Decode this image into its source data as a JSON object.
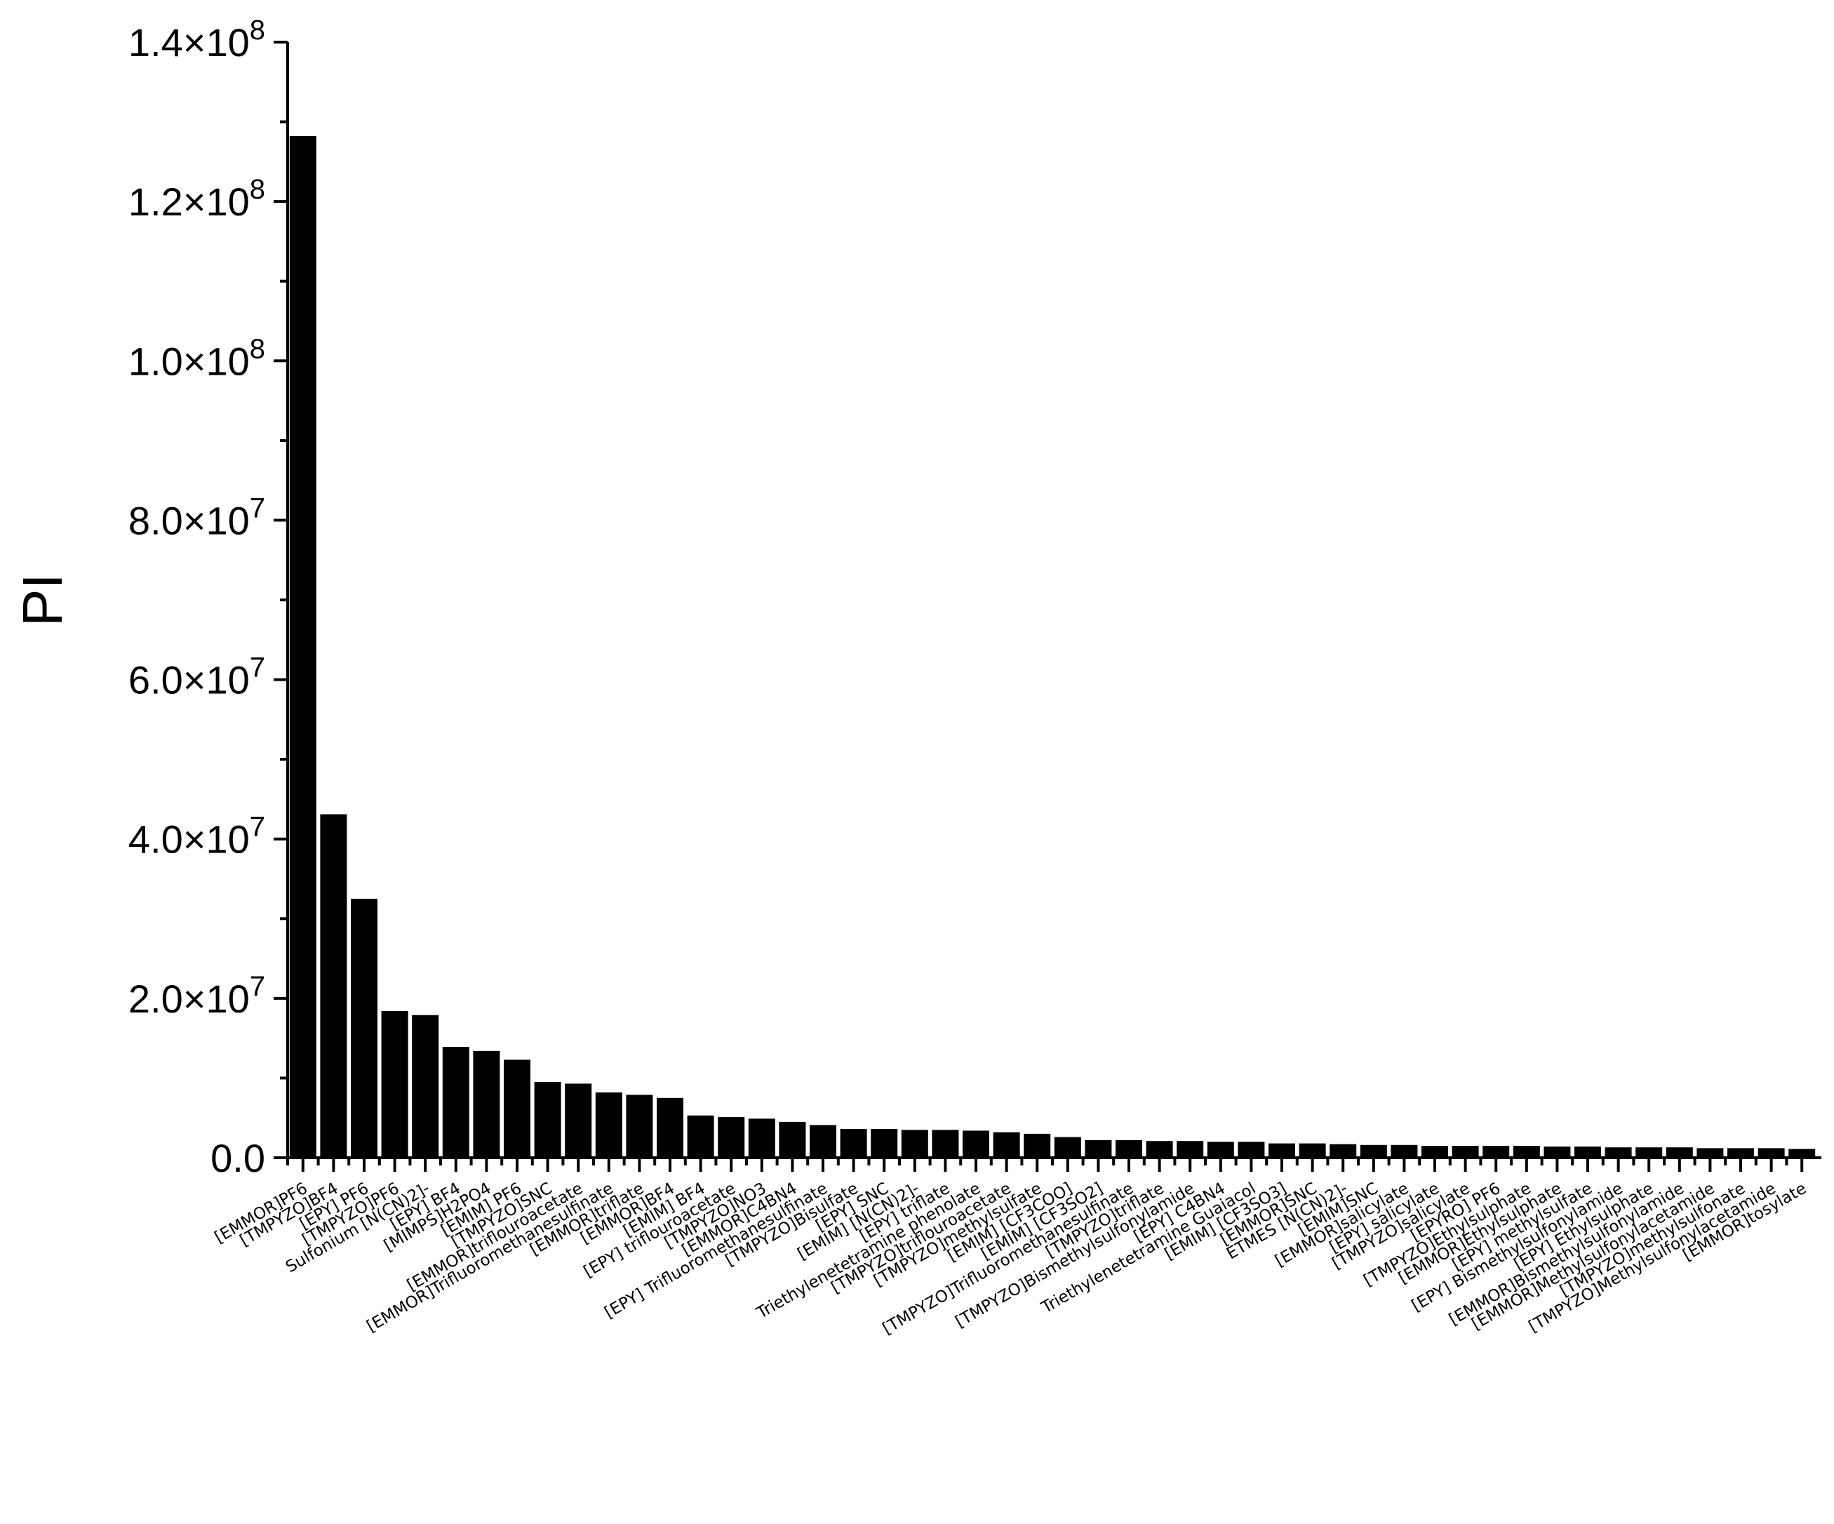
{
  "chart_data": {
    "type": "bar",
    "title": "",
    "xlabel": "",
    "ylabel": "PI",
    "ylim": [
      0,
      140000000
    ],
    "yticks": [
      {
        "value": 0,
        "label": "0.0"
      },
      {
        "value": 20000000,
        "label": "2.0×10",
        "exp": "7"
      },
      {
        "value": 40000000,
        "label": "4.0×10",
        "exp": "7"
      },
      {
        "value": 60000000,
        "label": "6.0×10",
        "exp": "7"
      },
      {
        "value": 80000000,
        "label": "8.0×10",
        "exp": "7"
      },
      {
        "value": 100000000,
        "label": "1.0×10",
        "exp": "8"
      },
      {
        "value": 120000000,
        "label": "1.2×10",
        "exp": "8"
      },
      {
        "value": 140000000,
        "label": "1.4×10",
        "exp": "8"
      }
    ],
    "grid": false,
    "legend": "none",
    "bar_color": "#000000",
    "categories": [
      "[EMMOR]PF6",
      "[TMPYZO]BF4",
      "[EPY]  PF6",
      "[TMPYZO]PF6",
      "Sulfonium [N(CN)2]-",
      "[EPY]  BF4",
      "[MIMPS]H2PO4",
      "[EMIM]  PF6",
      "[TMPYZO]SNC",
      "[EMMOR]triflouroacetate",
      "[EMMOR]Trifluoromethanesulfinate",
      "[EMMOR]triflate",
      "[EMMOR]BF4",
      "[EMIM]  BF4",
      "[EPY]  triflouroacetate",
      "[TMPYZO]NO3",
      "[EMMOR]C4BN4",
      "[EPY]  Trifluoromethanesulfinate",
      "[TMPYZO]Bisulfate",
      "[EPY]  SNC",
      "[EMIM]  [N(CN)2]-",
      "[EPY]  triflate",
      "Triethylenetetramine phenolate",
      "[TMPYZO]triflouroacetate",
      "[TMPYZO]methylsulfate",
      "[EMIM]  [CF3COO]",
      "[EMIM]  [CF3SO2]",
      "[TMPYZO]Trifluoromethanesulfinate",
      "[TMPYZO]triflate",
      "[TMPYZO]Bismethylsulfonylamide",
      "[EPY]  C4BN4",
      "Triethylenetetramine Guaiacol",
      "[EMIM]  [CF3SO3]",
      "[EMMOR]SNC",
      "ETMES  [N(CN)2]-",
      "[EMIM]SNC",
      "[EMMOR]salicylate",
      "[EPY]  salicylate",
      "[TMPYZO]salicylate",
      "[EPYRO] PF6",
      "[TMPYZO]Ethylsulphate",
      "[EMMOR]Ethylsulphate",
      "[EPY]  methylsulfate",
      "[EPY] Bismethylsulfonylamide",
      "[EPY]  Ethylsulphate",
      "[EMMOR]Bismethylsulfonylamide",
      "[EMMOR]Methylsulfonylacetamide",
      "[TMPYZO]methylsulfonate",
      "[TMPYZO]Methylsulfonylacetamide",
      "[EMMOR]tosylate"
    ],
    "values": [
      128200000,
      43100000,
      32500000,
      18400000,
      17900000,
      13900000,
      13400000,
      12300000,
      9500000,
      9300000,
      8200000,
      7900000,
      7500000,
      5300000,
      5100000,
      4900000,
      4500000,
      4100000,
      3600000,
      3600000,
      3500000,
      3500000,
      3400000,
      3200000,
      3000000,
      2600000,
      2200000,
      2200000,
      2100000,
      2100000,
      2000000,
      2000000,
      1800000,
      1800000,
      1700000,
      1600000,
      1600000,
      1500000,
      1500000,
      1500000,
      1500000,
      1400000,
      1400000,
      1300000,
      1300000,
      1300000,
      1200000,
      1200000,
      1200000,
      1100000
    ]
  }
}
